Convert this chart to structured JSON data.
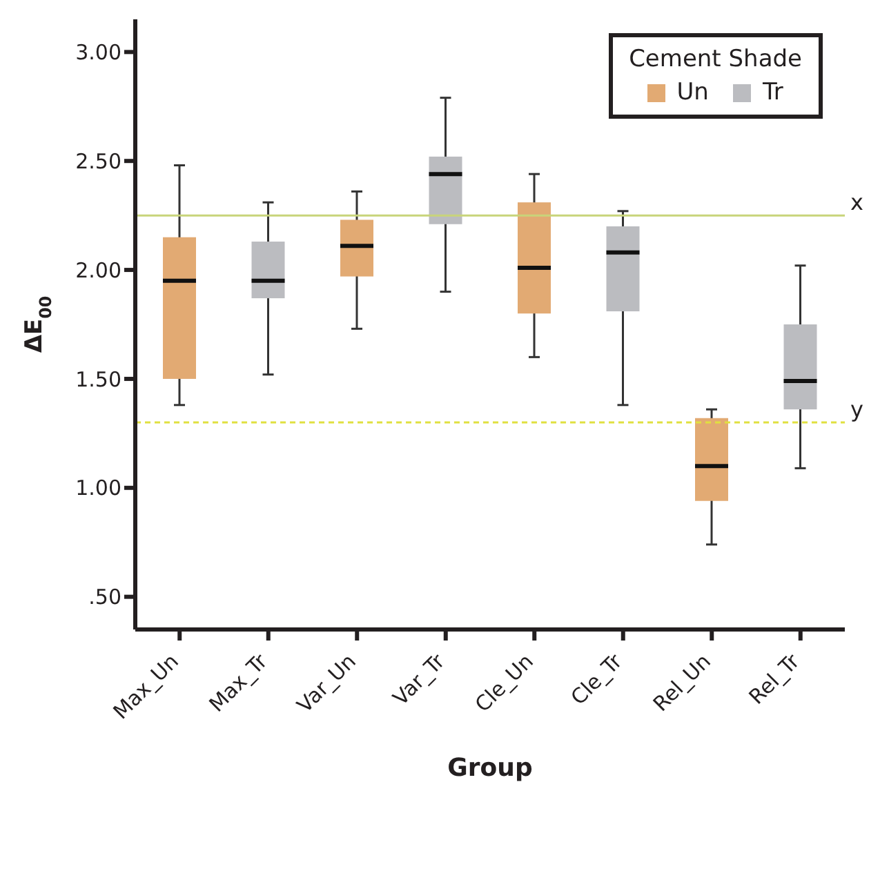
{
  "chart_data": {
    "type": "box",
    "xlabel": "Group",
    "ylabel": "ΔE$_{00}$",
    "legend_title": "Cement Shade",
    "legend": "top right",
    "categories": [
      "Max_Un",
      "Max_Tr",
      "Var_Un",
      "Var_Tr",
      "Cle_Un",
      "Cle_Tr",
      "Rel_Un",
      "Rel_Tr"
    ],
    "ylim": [
      0.35,
      3.15
    ],
    "yticks": [
      {
        "value": 0.5,
        "label": ".50"
      },
      {
        "value": 1,
        "label": "1.00"
      },
      {
        "value": 1.5,
        "label": "1.50"
      },
      {
        "value": 2,
        "label": "2.00"
      },
      {
        "value": 2.5,
        "label": "2.50"
      },
      {
        "value": 3,
        "label": "3.00"
      }
    ],
    "series": [
      {
        "name": "Un",
        "color": "#e2aa73",
        "boxes": [
          {
            "low": 1.38,
            "q1": 1.5,
            "median": 1.95,
            "q3": 2.15,
            "high": 2.48
          },
          null,
          {
            "low": 1.73,
            "q1": 1.97,
            "median": 2.11,
            "q3": 2.23,
            "high": 2.36
          },
          null,
          {
            "low": 1.6,
            "q1": 1.8,
            "median": 2.01,
            "q3": 2.31,
            "high": 2.44
          },
          null,
          {
            "low": 0.74,
            "q1": 0.94,
            "median": 1.1,
            "q3": 1.32,
            "high": 1.36
          },
          null
        ]
      },
      {
        "name": "Tr",
        "color": "#bbbcc0",
        "boxes": [
          null,
          {
            "low": 1.52,
            "q1": 1.87,
            "median": 1.95,
            "q3": 2.13,
            "high": 2.31
          },
          null,
          {
            "low": 1.9,
            "q1": 2.21,
            "median": 2.44,
            "q3": 2.52,
            "high": 2.79
          },
          null,
          {
            "low": 1.38,
            "q1": 1.81,
            "median": 2.08,
            "q3": 2.2,
            "high": 2.27
          },
          null,
          {
            "low": 1.09,
            "q1": 1.36,
            "median": 1.49,
            "q3": 1.75,
            "high": 2.02
          }
        ]
      }
    ],
    "ref_lines": [
      {
        "axis": "y",
        "value": 2.25,
        "label": "x",
        "color": "#c8d47a",
        "line_style": "solid"
      },
      {
        "axis": "y",
        "value": 1.3,
        "label": "y",
        "color": "#e0e040",
        "line_style": "dashed"
      }
    ]
  }
}
